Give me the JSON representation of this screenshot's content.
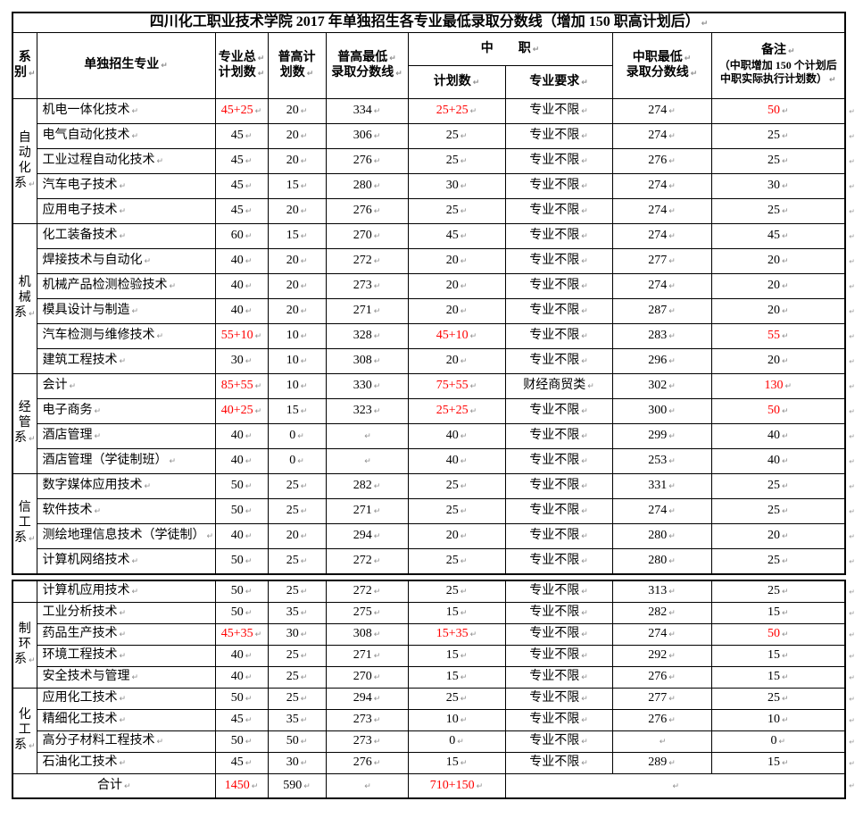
{
  "title": "四川化工职业技术学院 2017 年单独招生各专业最低录取分数线（增加 150 职高计划后）",
  "marks": {
    "cell_end": "↵"
  },
  "colors": {
    "red_text": "#ff0000",
    "border": "#000000",
    "mark_gray": "#8d8d8d",
    "background": "#ffffff"
  },
  "header": {
    "dept": "系\n别",
    "major": "单独招生专业",
    "total": "专业总↵\n计划数",
    "gk_plan": "普高计\n划数",
    "gk_min": "普高最低↵\n录取分数线",
    "zz_group": "中　　职",
    "zz_plan": "计划数",
    "zz_req": "专业要求",
    "zz_min": "中职最低↵\n录取分数线",
    "remark_title": "备注",
    "remark_note": "（中职增加 150 个计划后\n中职实际执行计划数）"
  },
  "layout": {
    "second_table_start_section": 4
  },
  "sections": [
    {
      "dept": "自动化系",
      "rows": [
        {
          "major": "机电一体化技术",
          "total": "45+25",
          "gk_plan": "20",
          "gk_min": "334",
          "zz_plan": "25+25",
          "zz_req": "专业不限",
          "zz_min": "274",
          "remark": "50",
          "red": [
            "total",
            "zz_plan",
            "remark"
          ]
        },
        {
          "major": "电气自动化技术",
          "total": "45",
          "gk_plan": "20",
          "gk_min": "306",
          "zz_plan": "25",
          "zz_req": "专业不限",
          "zz_min": "274",
          "remark": "25",
          "red": []
        },
        {
          "major": "工业过程自动化技术",
          "total": "45",
          "gk_plan": "20",
          "gk_min": "276",
          "zz_plan": "25",
          "zz_req": "专业不限",
          "zz_min": "276",
          "remark": "25",
          "red": []
        },
        {
          "major": "汽车电子技术",
          "total": "45",
          "gk_plan": "15",
          "gk_min": "280",
          "zz_plan": "30",
          "zz_req": "专业不限",
          "zz_min": "274",
          "remark": "30",
          "red": []
        },
        {
          "major": "应用电子技术",
          "total": "45",
          "gk_plan": "20",
          "gk_min": "276",
          "zz_plan": "25",
          "zz_req": "专业不限",
          "zz_min": "274",
          "remark": "25",
          "red": []
        }
      ]
    },
    {
      "dept": "机械系",
      "rows": [
        {
          "major": "化工装备技术",
          "total": "60",
          "gk_plan": "15",
          "gk_min": "270",
          "zz_plan": "45",
          "zz_req": "专业不限",
          "zz_min": "274",
          "remark": "45",
          "red": []
        },
        {
          "major": "焊接技术与自动化",
          "total": "40",
          "gk_plan": "20",
          "gk_min": "272",
          "zz_plan": "20",
          "zz_req": "专业不限",
          "zz_min": "277",
          "remark": "20",
          "red": []
        },
        {
          "major": "机械产品检测检验技术",
          "total": "40",
          "gk_plan": "20",
          "gk_min": "273",
          "zz_plan": "20",
          "zz_req": "专业不限",
          "zz_min": "274",
          "remark": "20",
          "red": []
        },
        {
          "major": "模具设计与制造",
          "total": "40",
          "gk_plan": "20",
          "gk_min": "271",
          "zz_plan": "20",
          "zz_req": "专业不限",
          "zz_min": "287",
          "remark": "20",
          "red": []
        },
        {
          "major": "汽车检测与维修技术",
          "total": "55+10",
          "gk_plan": "10",
          "gk_min": "328",
          "zz_plan": "45+10",
          "zz_req": "专业不限",
          "zz_min": "283",
          "remark": "55",
          "red": [
            "total",
            "zz_plan",
            "remark"
          ]
        },
        {
          "major": "建筑工程技术",
          "total": "30",
          "gk_plan": "10",
          "gk_min": "308",
          "zz_plan": "20",
          "zz_req": "专业不限",
          "zz_min": "296",
          "remark": "20",
          "red": []
        }
      ]
    },
    {
      "dept": "经管系",
      "rows": [
        {
          "major": "会计",
          "total": "85+55",
          "gk_plan": "10",
          "gk_min": "330",
          "zz_plan": "75+55",
          "zz_req": "财经商贸类",
          "zz_min": "302",
          "remark": "130",
          "red": [
            "total",
            "zz_plan",
            "remark"
          ]
        },
        {
          "major": "电子商务",
          "total": "40+25",
          "gk_plan": "15",
          "gk_min": "323",
          "zz_plan": "25+25",
          "zz_req": "专业不限",
          "zz_min": "300",
          "remark": "50",
          "red": [
            "total",
            "zz_plan",
            "remark"
          ]
        },
        {
          "major": "酒店管理",
          "total": "40",
          "gk_plan": "0",
          "gk_min": "",
          "zz_plan": "40",
          "zz_req": "专业不限",
          "zz_min": "299",
          "remark": "40",
          "red": []
        },
        {
          "major": "酒店管理（学徒制班）",
          "total": "40",
          "gk_plan": "0",
          "gk_min": "",
          "zz_plan": "40",
          "zz_req": "专业不限",
          "zz_min": "253",
          "remark": "40",
          "red": []
        }
      ]
    },
    {
      "dept": "信工系",
      "rows": [
        {
          "major": "数字媒体应用技术",
          "total": "50",
          "gk_plan": "25",
          "gk_min": "282",
          "zz_plan": "25",
          "zz_req": "专业不限",
          "zz_min": "331",
          "remark": "25",
          "red": []
        },
        {
          "major": "软件技术",
          "total": "50",
          "gk_plan": "25",
          "gk_min": "271",
          "zz_plan": "25",
          "zz_req": "专业不限",
          "zz_min": "274",
          "remark": "25",
          "red": []
        },
        {
          "major": "测绘地理信息技术（学徒制）",
          "total": "40",
          "gk_plan": "20",
          "gk_min": "294",
          "zz_plan": "20",
          "zz_req": "专业不限",
          "zz_min": "280",
          "remark": "20",
          "red": []
        },
        {
          "major": "计算机网络技术",
          "total": "50",
          "gk_plan": "25",
          "gk_min": "272",
          "zz_plan": "25",
          "zz_req": "专业不限",
          "zz_min": "280",
          "remark": "25",
          "red": []
        }
      ]
    },
    {
      "dept": null,
      "rows": [
        {
          "major": "计算机应用技术",
          "total": "50",
          "gk_plan": "25",
          "gk_min": "272",
          "zz_plan": "25",
          "zz_req": "专业不限",
          "zz_min": "313",
          "remark": "25",
          "red": []
        }
      ]
    },
    {
      "dept": "制环系",
      "rows": [
        {
          "major": "工业分析技术",
          "total": "50",
          "gk_plan": "35",
          "gk_min": "275",
          "zz_plan": "15",
          "zz_req": "专业不限",
          "zz_min": "282",
          "remark": "15",
          "red": []
        },
        {
          "major": "药品生产技术",
          "total": "45+35",
          "gk_plan": "30",
          "gk_min": "308",
          "zz_plan": "15+35",
          "zz_req": "专业不限",
          "zz_min": "274",
          "remark": "50",
          "red": [
            "total",
            "zz_plan",
            "remark"
          ]
        },
        {
          "major": "环境工程技术",
          "total": "40",
          "gk_plan": "25",
          "gk_min": "271",
          "zz_plan": "15",
          "zz_req": "专业不限",
          "zz_min": "292",
          "remark": "15",
          "red": []
        },
        {
          "major": "安全技术与管理",
          "total": "40",
          "gk_plan": "25",
          "gk_min": "270",
          "zz_plan": "15",
          "zz_req": "专业不限",
          "zz_min": "276",
          "remark": "15",
          "red": []
        }
      ]
    },
    {
      "dept": "化工系",
      "rows": [
        {
          "major": "应用化工技术",
          "total": "50",
          "gk_plan": "25",
          "gk_min": "294",
          "zz_plan": "25",
          "zz_req": "专业不限",
          "zz_min": "277",
          "remark": "25",
          "red": []
        },
        {
          "major": "精细化工技术",
          "total": "45",
          "gk_plan": "35",
          "gk_min": "273",
          "zz_plan": "10",
          "zz_req": "专业不限",
          "zz_min": "276",
          "remark": "10",
          "red": []
        },
        {
          "major": "高分子材料工程技术",
          "total": "50",
          "gk_plan": "50",
          "gk_min": "273",
          "zz_plan": "0",
          "zz_req": "专业不限",
          "zz_min": "",
          "remark": "0",
          "red": []
        },
        {
          "major": "石油化工技术",
          "total": "45",
          "gk_plan": "30",
          "gk_min": "276",
          "zz_plan": "15",
          "zz_req": "专业不限",
          "zz_min": "289",
          "remark": "15",
          "red": []
        }
      ]
    }
  ],
  "footer": {
    "label": "合计",
    "total": "1450",
    "gk_plan": "590",
    "gk_min": "",
    "zz_plan": "710+150",
    "rest": "",
    "red": [
      "total",
      "zz_plan"
    ]
  }
}
